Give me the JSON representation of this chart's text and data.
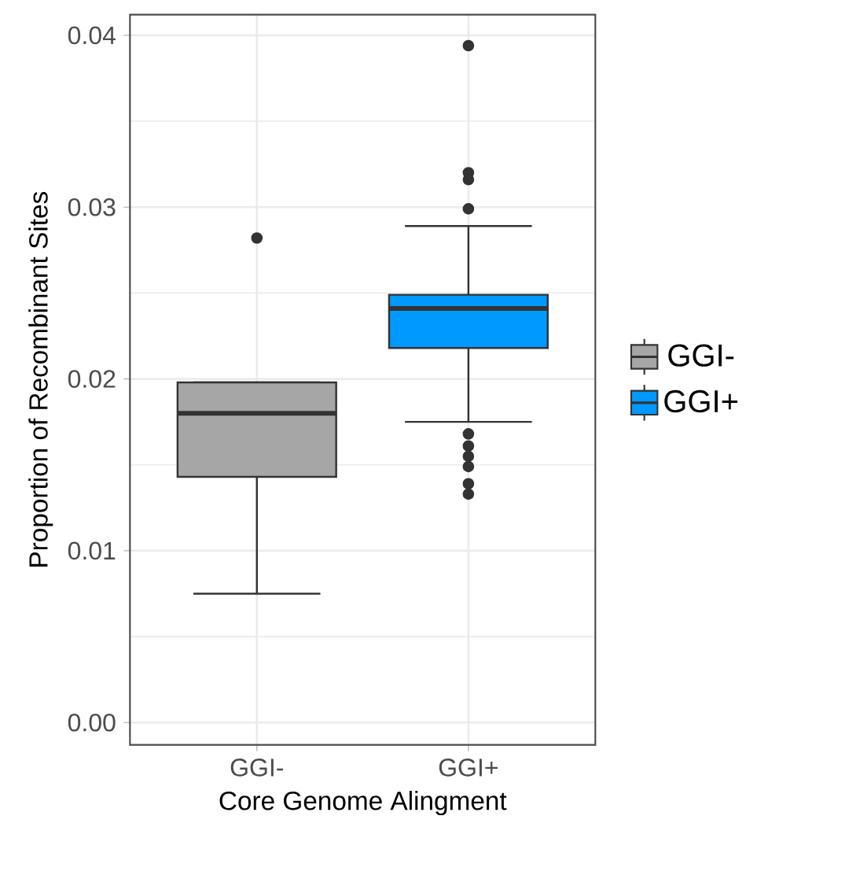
{
  "chart_data": {
    "type": "box",
    "xlabel": "Core Genome Alingment",
    "ylabel": "Proportion of Recombinant Sites",
    "categories": [
      "GGI-",
      "GGI+"
    ],
    "ylim": [
      -0.0013,
      0.0412
    ],
    "yticks": [
      {
        "value": 0,
        "label": "0.00"
      },
      {
        "value": 0.01,
        "label": "0.01"
      },
      {
        "value": 0.02,
        "label": "0.02"
      },
      {
        "value": 0.03,
        "label": "0.03"
      },
      {
        "value": 0.04,
        "label": "0.04"
      }
    ],
    "grid": true,
    "legend": "right",
    "marker": "circle",
    "series": [
      {
        "name": "GGI-",
        "color": "#a6a6a6",
        "boxes": [
          {
            "low": 0.0075,
            "q1": 0.0143,
            "median": 0.018,
            "q3": 0.0198,
            "high": 0.0198,
            "outliers": [
              0.0282
            ]
          },
          null
        ]
      },
      {
        "name": "GGI+",
        "color": "#0099ff",
        "boxes": [
          null,
          {
            "low": 0.0175,
            "q1": 0.0218,
            "median": 0.0241,
            "q3": 0.0249,
            "high": 0.0289,
            "outliers": [
              0.0394,
              0.032,
              0.0316,
              0.0299,
              0.0168,
              0.0161,
              0.0155,
              0.0149,
              0.0139,
              0.0133
            ]
          }
        ]
      }
    ]
  }
}
